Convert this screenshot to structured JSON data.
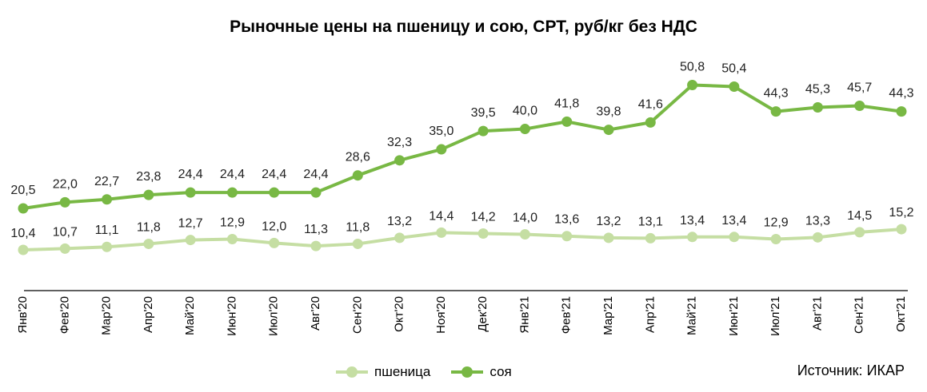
{
  "chart_data": {
    "type": "line",
    "title": "Рыночные цены на пшеницу и сою, СРТ, руб/кг без НДС",
    "categories": [
      "Янв'20",
      "Фев'20",
      "Мар'20",
      "Апр'20",
      "Май'20",
      "Июн'20",
      "Июл'20",
      "Авг'20",
      "Сен'20",
      "Окт'20",
      "Ноя'20",
      "Дек'20",
      "Янв'21",
      "Фев'21",
      "Мар'21",
      "Апр'21",
      "Май'21",
      "Июн'21",
      "Июл'21",
      "Авг'21",
      "Сен'21",
      "Окт'21"
    ],
    "series": [
      {
        "name": "пшеница",
        "color": "#c5dea3",
        "values": [
          10.4,
          10.7,
          11.1,
          11.8,
          12.7,
          12.9,
          12.0,
          11.3,
          11.8,
          13.2,
          14.4,
          14.2,
          14.0,
          13.6,
          13.2,
          13.1,
          13.4,
          13.4,
          12.9,
          13.3,
          14.5,
          15.2
        ],
        "labels": [
          "10,4",
          "10,7",
          "11,1",
          "11,8",
          "12,7",
          "12,9",
          "12,0",
          "11,3",
          "11,8",
          "13,2",
          "14,4",
          "14,2",
          "14,0",
          "13,6",
          "13,2",
          "13,1",
          "13,4",
          "13,4",
          "12,9",
          "13,3",
          "14,5",
          "15,2"
        ]
      },
      {
        "name": "соя",
        "color": "#78b844",
        "values": [
          20.5,
          22.0,
          22.7,
          23.8,
          24.4,
          24.4,
          24.4,
          24.4,
          28.6,
          32.3,
          35.0,
          39.5,
          40.0,
          41.8,
          39.8,
          41.6,
          50.8,
          50.4,
          44.3,
          45.3,
          45.7,
          44.3
        ],
        "labels": [
          "20,5",
          "22,0",
          "22,7",
          "23,8",
          "24,4",
          "24,4",
          "24,4",
          "24,4",
          "28,6",
          "32,3",
          "35,0",
          "39,5",
          "40,0",
          "41,8",
          "39,8",
          "41,6",
          "50,8",
          "50,4",
          "44,3",
          "45,3",
          "45,7",
          "44,3"
        ]
      }
    ],
    "grid": false,
    "legend_position": "bottom",
    "source": "Источник: ИКАР"
  }
}
